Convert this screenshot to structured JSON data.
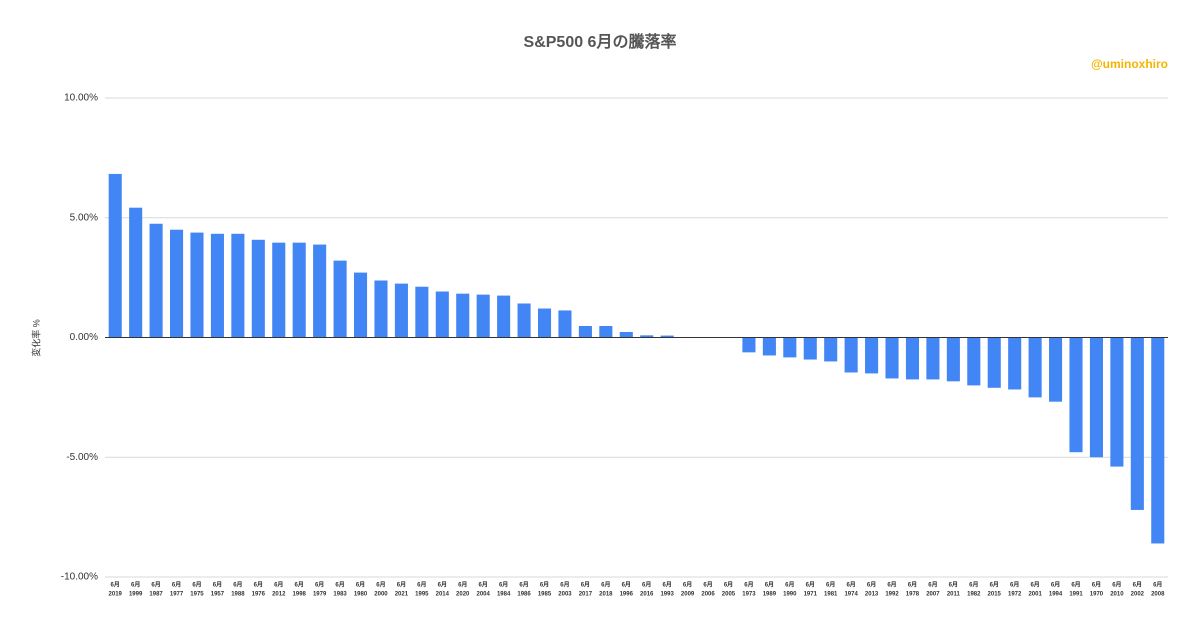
{
  "chart_data": {
    "type": "bar",
    "title": "S&P500  6月の騰落率",
    "watermark": "@uminoxhiro",
    "y_label": "変化率 %",
    "color": "#4285f4",
    "grid": true,
    "categories": [
      [
        "6月",
        "2019"
      ],
      [
        "6月",
        "1999"
      ],
      [
        "6月",
        "1987"
      ],
      [
        "6月",
        "1977"
      ],
      [
        "6月",
        "1975"
      ],
      [
        "6月",
        "1957"
      ],
      [
        "6月",
        "1988"
      ],
      [
        "6月",
        "1976"
      ],
      [
        "6月",
        "2012"
      ],
      [
        "6月",
        "1998"
      ],
      [
        "6月",
        "1979"
      ],
      [
        "6月",
        "1983"
      ],
      [
        "6月",
        "1980"
      ],
      [
        "6月",
        "2000"
      ],
      [
        "6月",
        "2021"
      ],
      [
        "6月",
        "1995"
      ],
      [
        "6月",
        "2014"
      ],
      [
        "6月",
        "2020"
      ],
      [
        "6月",
        "2004"
      ],
      [
        "6月",
        "1984"
      ],
      [
        "6月",
        "1986"
      ],
      [
        "6月",
        "1985"
      ],
      [
        "6月",
        "2003"
      ],
      [
        "6月",
        "2017"
      ],
      [
        "6月",
        "2018"
      ],
      [
        "6月",
        "1996"
      ],
      [
        "6月",
        "2016"
      ],
      [
        "6月",
        "1993"
      ],
      [
        "6月",
        "2009"
      ],
      [
        "6月",
        "2006"
      ],
      [
        "6月",
        "2005"
      ],
      [
        "6月",
        "1973"
      ],
      [
        "6月",
        "1989"
      ],
      [
        "6月",
        "1990"
      ],
      [
        "6月",
        "1971"
      ],
      [
        "6月",
        "1981"
      ],
      [
        "6月",
        "1974"
      ],
      [
        "6月",
        "2013"
      ],
      [
        "6月",
        "1992"
      ],
      [
        "6月",
        "1978"
      ],
      [
        "6月",
        "2007"
      ],
      [
        "6月",
        "2011"
      ],
      [
        "6月",
        "1982"
      ],
      [
        "6月",
        "2015"
      ],
      [
        "6月",
        "1972"
      ],
      [
        "6月",
        "2001"
      ],
      [
        "6月",
        "1994"
      ],
      [
        "6月",
        "1991"
      ],
      [
        "6月",
        "1970"
      ],
      [
        "6月",
        "2010"
      ],
      [
        "6月",
        "2002"
      ],
      [
        "6月",
        "2008"
      ]
    ],
    "values": [
      6.83,
      5.42,
      4.75,
      4.5,
      4.38,
      4.33,
      4.33,
      4.08,
      3.96,
      3.96,
      3.88,
      3.21,
      2.71,
      2.38,
      2.25,
      2.12,
      1.92,
      1.83,
      1.79,
      1.75,
      1.42,
      1.21,
      1.13,
      0.48,
      0.48,
      0.23,
      0.09,
      0.08,
      0.02,
      0.01,
      -0.01,
      -0.62,
      -0.75,
      -0.83,
      -0.92,
      -1.0,
      -1.46,
      -1.5,
      -1.71,
      -1.75,
      -1.75,
      -1.83,
      -2.0,
      -2.1,
      -2.17,
      -2.5,
      -2.68,
      -4.79,
      -5.0,
      -5.39,
      -7.2,
      -8.6
    ],
    "ylim": [
      -10,
      10
    ],
    "yticks": [
      {
        "value": -10,
        "label": "-10.00%"
      },
      {
        "value": -5,
        "label": "-5.00%"
      },
      {
        "value": 0,
        "label": "0.00%"
      },
      {
        "value": 5,
        "label": "5.00%"
      },
      {
        "value": 10,
        "label": "10.00%"
      }
    ]
  }
}
